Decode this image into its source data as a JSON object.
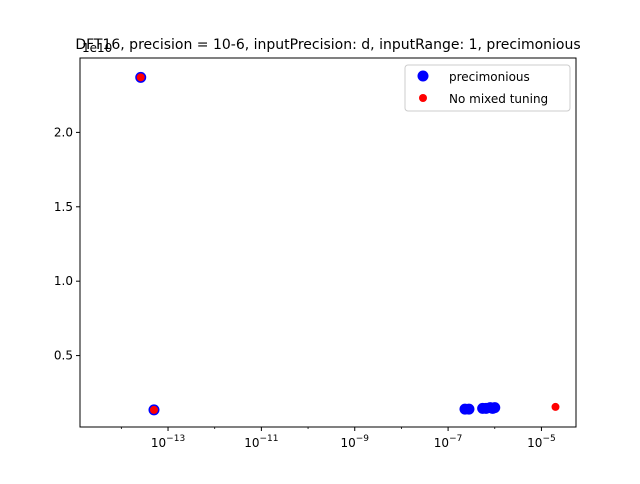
{
  "chart_data": {
    "type": "scatter",
    "title": "DFT16, precision = 10-6, inputPrecision: d, inputRange: 1, precimonious",
    "xlabel": "",
    "ylabel": "",
    "x_scale": "log",
    "xlim": [
      1.3e-15,
      5.5e-05
    ],
    "ylim": [
      200000000.0,
      25000000000.0
    ],
    "y_offset_text": "1e10",
    "y_ticks": [
      5000000000.0,
      10000000000.0,
      15000000000.0,
      20000000000.0
    ],
    "y_tick_labels": [
      "0.5",
      "1.0",
      "1.5",
      "2.0"
    ],
    "x_ticks": [
      1e-13,
      1e-11,
      1e-09,
      1e-07,
      1e-05
    ],
    "x_tick_labels": [
      {
        "base": "10",
        "exp": "−13"
      },
      {
        "base": "10",
        "exp": "−11"
      },
      {
        "base": "10",
        "exp": "−9"
      },
      {
        "base": "10",
        "exp": "−7"
      },
      {
        "base": "10",
        "exp": "−5"
      }
    ],
    "grid": false,
    "legend_position": "top-right",
    "series": [
      {
        "name": "precimonious",
        "color": "#0000ff",
        "marker_size": "large",
        "points": [
          {
            "x": 2.6e-14,
            "y": 23700000000.0
          },
          {
            "x": 5e-14,
            "y": 1350000000.0
          },
          {
            "x": 2.3e-07,
            "y": 1400000000.0
          },
          {
            "x": 2.8e-07,
            "y": 1400000000.0
          },
          {
            "x": 5.5e-07,
            "y": 1450000000.0
          },
          {
            "x": 6.5e-07,
            "y": 1450000000.0
          },
          {
            "x": 8e-07,
            "y": 1500000000.0
          },
          {
            "x": 9e-07,
            "y": 1450000000.0
          },
          {
            "x": 1e-06,
            "y": 1500000000.0
          }
        ]
      },
      {
        "name": "No mixed tuning",
        "color": "#ff0000",
        "marker_size": "small",
        "points": [
          {
            "x": 2.6e-14,
            "y": 23700000000.0
          },
          {
            "x": 5e-14,
            "y": 1350000000.0
          },
          {
            "x": 2e-05,
            "y": 1550000000.0
          }
        ]
      }
    ]
  }
}
